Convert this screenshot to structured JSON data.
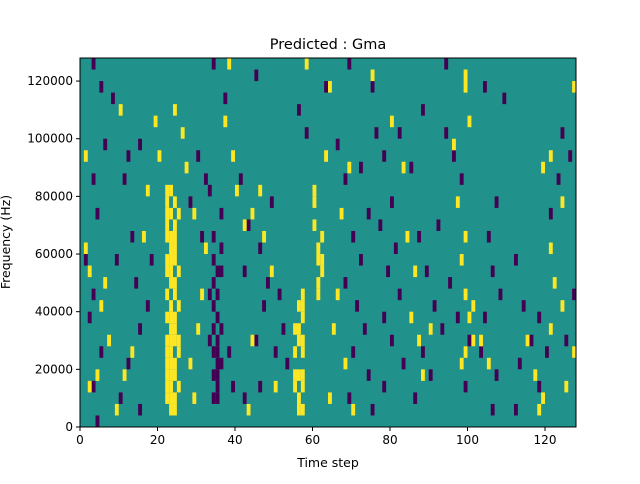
{
  "chart_data": {
    "type": "heatmap",
    "title": "Predicted : Gma",
    "xlabel": "Time step",
    "ylabel": "Frequency (Hz)",
    "xlim": [
      0,
      128
    ],
    "ylim": [
      0,
      128000
    ],
    "xticks": [
      0,
      20,
      40,
      60,
      80,
      100,
      120
    ],
    "yticks": [
      0,
      20000,
      40000,
      60000,
      80000,
      100000,
      120000
    ],
    "ytick_labels": [
      "0",
      "20000",
      "40000",
      "60000",
      "80000",
      "100000",
      "120000"
    ],
    "grid": false,
    "legend": "none",
    "value_levels": [
      -1,
      0,
      1
    ],
    "colors": {
      "-1": "#440154",
      "0": "#21918c",
      "1": "#fde725"
    },
    "background_value": 0,
    "cells": [
      [
        22,
        80000,
        1
      ],
      [
        22,
        76000,
        1
      ],
      [
        22,
        72000,
        1
      ],
      [
        22,
        68000,
        1
      ],
      [
        22,
        64000,
        1
      ],
      [
        22,
        56000,
        1
      ],
      [
        22,
        52000,
        1
      ],
      [
        22,
        44000,
        1
      ],
      [
        22,
        36000,
        1
      ],
      [
        22,
        28000,
        1
      ],
      [
        22,
        24000,
        1
      ],
      [
        22,
        20000,
        1
      ],
      [
        22,
        16000,
        1
      ],
      [
        22,
        12000,
        1
      ],
      [
        22,
        8000,
        1
      ],
      [
        23,
        80000,
        1
      ],
      [
        23,
        72000,
        1
      ],
      [
        23,
        64000,
        1
      ],
      [
        23,
        60000,
        1
      ],
      [
        23,
        56000,
        1
      ],
      [
        23,
        52000,
        1
      ],
      [
        23,
        48000,
        1
      ],
      [
        23,
        40000,
        1
      ],
      [
        23,
        36000,
        1
      ],
      [
        23,
        32000,
        1
      ],
      [
        23,
        28000,
        1
      ],
      [
        23,
        24000,
        1
      ],
      [
        23,
        20000,
        1
      ],
      [
        23,
        16000,
        1
      ],
      [
        23,
        12000,
        1
      ],
      [
        23,
        8000,
        1
      ],
      [
        23,
        4000,
        1
      ],
      [
        24,
        76000,
        1
      ],
      [
        24,
        68000,
        1
      ],
      [
        24,
        64000,
        1
      ],
      [
        24,
        60000,
        1
      ],
      [
        24,
        56000,
        1
      ],
      [
        24,
        48000,
        1
      ],
      [
        24,
        44000,
        1
      ],
      [
        24,
        36000,
        1
      ],
      [
        24,
        32000,
        1
      ],
      [
        24,
        28000,
        1
      ],
      [
        24,
        20000,
        1
      ],
      [
        24,
        16000,
        1
      ],
      [
        24,
        8000,
        1
      ],
      [
        24,
        4000,
        1
      ],
      [
        25,
        72000,
        1
      ],
      [
        25,
        52000,
        1
      ],
      [
        25,
        40000,
        1
      ],
      [
        25,
        28000,
        1
      ],
      [
        25,
        24000,
        1
      ],
      [
        25,
        12000,
        1
      ],
      [
        57,
        44000,
        1
      ],
      [
        57,
        40000,
        1
      ],
      [
        57,
        36000,
        1
      ],
      [
        57,
        28000,
        1
      ],
      [
        57,
        24000,
        1
      ],
      [
        57,
        16000,
        1
      ],
      [
        57,
        12000,
        1
      ],
      [
        57,
        4000,
        1
      ],
      [
        56,
        40000,
        1
      ],
      [
        56,
        32000,
        1
      ],
      [
        56,
        28000,
        1
      ],
      [
        56,
        16000,
        1
      ],
      [
        56,
        8000,
        1
      ],
      [
        56,
        4000,
        1
      ],
      [
        55,
        32000,
        1
      ],
      [
        55,
        24000,
        1
      ],
      [
        55,
        16000,
        1
      ],
      [
        55,
        12000,
        1
      ],
      [
        61,
        60000,
        1
      ],
      [
        61,
        56000,
        1
      ],
      [
        61,
        48000,
        1
      ],
      [
        61,
        44000,
        1
      ],
      [
        62,
        64000,
        1
      ],
      [
        62,
        56000,
        1
      ],
      [
        62,
        52000,
        1
      ],
      [
        60,
        80000,
        1
      ],
      [
        60,
        76000,
        1
      ],
      [
        60,
        68000,
        1
      ],
      [
        35,
        52000,
        -1
      ],
      [
        35,
        44000,
        -1
      ],
      [
        35,
        36000,
        -1
      ],
      [
        35,
        28000,
        -1
      ],
      [
        35,
        24000,
        -1
      ],
      [
        35,
        20000,
        -1
      ],
      [
        35,
        16000,
        -1
      ],
      [
        35,
        12000,
        -1
      ],
      [
        35,
        8000,
        -1
      ],
      [
        34,
        64000,
        -1
      ],
      [
        34,
        56000,
        -1
      ],
      [
        34,
        48000,
        -1
      ],
      [
        34,
        40000,
        -1
      ],
      [
        34,
        32000,
        -1
      ],
      [
        34,
        24000,
        -1
      ],
      [
        34,
        16000,
        -1
      ],
      [
        34,
        8000,
        -1
      ],
      [
        36,
        72000,
        -1
      ],
      [
        36,
        60000,
        -1
      ],
      [
        36,
        52000,
        -1
      ],
      [
        36,
        32000,
        -1
      ],
      [
        36,
        20000,
        -1
      ],
      [
        33,
        80000,
        -1
      ],
      [
        33,
        44000,
        -1
      ],
      [
        33,
        28000,
        -1
      ],
      [
        3,
        124000,
        -1
      ],
      [
        5,
        116000,
        -1
      ],
      [
        8,
        112000,
        -1
      ],
      [
        6,
        96000,
        -1
      ],
      [
        3,
        84000,
        -1
      ],
      [
        4,
        72000,
        -1
      ],
      [
        1,
        56000,
        -1
      ],
      [
        3,
        44000,
        -1
      ],
      [
        2,
        36000,
        -1
      ],
      [
        5,
        24000,
        -1
      ],
      [
        3,
        12000,
        -1
      ],
      [
        4,
        0,
        -1
      ],
      [
        12,
        92000,
        -1
      ],
      [
        15,
        96000,
        -1
      ],
      [
        11,
        84000,
        -1
      ],
      [
        13,
        64000,
        -1
      ],
      [
        18,
        56000,
        -1
      ],
      [
        9,
        56000,
        -1
      ],
      [
        14,
        48000,
        -1
      ],
      [
        17,
        40000,
        -1
      ],
      [
        15,
        32000,
        -1
      ],
      [
        12,
        20000,
        -1
      ],
      [
        10,
        8000,
        -1
      ],
      [
        15,
        4000,
        -1
      ],
      [
        30,
        92000,
        -1
      ],
      [
        32,
        84000,
        -1
      ],
      [
        28,
        76000,
        -1
      ],
      [
        31,
        64000,
        -1
      ],
      [
        42,
        52000,
        -1
      ],
      [
        46,
        60000,
        -1
      ],
      [
        48,
        48000,
        -1
      ],
      [
        51,
        44000,
        -1
      ],
      [
        47,
        40000,
        -1
      ],
      [
        52,
        32000,
        -1
      ],
      [
        50,
        24000,
        -1
      ],
      [
        46,
        12000,
        -1
      ],
      [
        42,
        8000,
        -1
      ],
      [
        41,
        84000,
        -1
      ],
      [
        43,
        68000,
        -1
      ],
      [
        49,
        76000,
        -1
      ],
      [
        45,
        28000,
        -1
      ],
      [
        53,
        20000,
        -1
      ],
      [
        38,
        24000,
        -1
      ],
      [
        39,
        12000,
        -1
      ],
      [
        66,
        96000,
        -1
      ],
      [
        68,
        84000,
        -1
      ],
      [
        72,
        88000,
        -1
      ],
      [
        74,
        72000,
        -1
      ],
      [
        70,
        64000,
        -1
      ],
      [
        72,
        56000,
        -1
      ],
      [
        68,
        48000,
        -1
      ],
      [
        71,
        40000,
        -1
      ],
      [
        73,
        32000,
        -1
      ],
      [
        70,
        24000,
        -1
      ],
      [
        74,
        16000,
        -1
      ],
      [
        69,
        8000,
        -1
      ],
      [
        75,
        4000,
        -1
      ],
      [
        76,
        100000,
        -1
      ],
      [
        78,
        92000,
        -1
      ],
      [
        80,
        76000,
        -1
      ],
      [
        77,
        68000,
        -1
      ],
      [
        81,
        60000,
        -1
      ],
      [
        79,
        52000,
        -1
      ],
      [
        82,
        44000,
        -1
      ],
      [
        78,
        36000,
        -1
      ],
      [
        80,
        28000,
        -1
      ],
      [
        83,
        20000,
        -1
      ],
      [
        78,
        12000,
        -1
      ],
      [
        85,
        88000,
        -1
      ],
      [
        87,
        64000,
        -1
      ],
      [
        89,
        52000,
        -1
      ],
      [
        91,
        40000,
        -1
      ],
      [
        93,
        32000,
        -1
      ],
      [
        88,
        24000,
        -1
      ],
      [
        90,
        16000,
        -1
      ],
      [
        86,
        8000,
        -1
      ],
      [
        94,
        100000,
        -1
      ],
      [
        96,
        92000,
        -1
      ],
      [
        98,
        84000,
        -1
      ],
      [
        92,
        68000,
        -1
      ],
      [
        95,
        48000,
        -1
      ],
      [
        97,
        36000,
        -1
      ],
      [
        100,
        28000,
        -1
      ],
      [
        99,
        12000,
        -1
      ],
      [
        105,
        64000,
        -1
      ],
      [
        107,
        76000,
        -1
      ],
      [
        106,
        52000,
        -1
      ],
      [
        108,
        44000,
        -1
      ],
      [
        104,
        36000,
        -1
      ],
      [
        103,
        24000,
        -1
      ],
      [
        107,
        16000,
        -1
      ],
      [
        106,
        4000,
        -1
      ],
      [
        112,
        56000,
        -1
      ],
      [
        114,
        40000,
        -1
      ],
      [
        116,
        28000,
        -1
      ],
      [
        113,
        20000,
        -1
      ],
      [
        112,
        4000,
        -1
      ],
      [
        118,
        36000,
        -1
      ],
      [
        118,
        12000,
        -1
      ],
      [
        121,
        72000,
        -1
      ],
      [
        123,
        84000,
        -1
      ],
      [
        124,
        100000,
        -1
      ],
      [
        126,
        92000,
        -1
      ],
      [
        127,
        44000,
        -1
      ],
      [
        120,
        24000,
        -1
      ],
      [
        125,
        28000,
        -1
      ],
      [
        69,
        124000,
        -1
      ],
      [
        75,
        116000,
        -1
      ],
      [
        82,
        100000,
        -1
      ],
      [
        88,
        108000,
        -1
      ],
      [
        94,
        124000,
        -1
      ],
      [
        104,
        116000,
        -1
      ],
      [
        109,
        112000,
        -1
      ],
      [
        34,
        124000,
        -1
      ],
      [
        37,
        112000,
        -1
      ],
      [
        45,
        120000,
        -1
      ],
      [
        56,
        108000,
        -1
      ],
      [
        58,
        100000,
        -1
      ],
      [
        63,
        116000,
        -1
      ],
      [
        29,
        8000,
        1
      ],
      [
        28,
        20000,
        1
      ],
      [
        30,
        32000,
        1
      ],
      [
        31,
        44000,
        1
      ],
      [
        32,
        60000,
        1
      ],
      [
        29,
        72000,
        1
      ],
      [
        27,
        88000,
        1
      ],
      [
        26,
        100000,
        1
      ],
      [
        24,
        108000,
        1
      ],
      [
        20,
        92000,
        1
      ],
      [
        19,
        104000,
        1
      ],
      [
        17,
        80000,
        1
      ],
      [
        16,
        64000,
        1
      ],
      [
        13,
        24000,
        1
      ],
      [
        11,
        16000,
        1
      ],
      [
        9,
        4000,
        1
      ],
      [
        7,
        28000,
        1
      ],
      [
        5,
        40000,
        1
      ],
      [
        2,
        52000,
        1
      ],
      [
        1,
        60000,
        1
      ],
      [
        6,
        48000,
        1
      ],
      [
        4,
        16000,
        1
      ],
      [
        2,
        12000,
        1
      ],
      [
        1,
        92000,
        1
      ],
      [
        10,
        108000,
        1
      ],
      [
        38,
        124000,
        1
      ],
      [
        37,
        104000,
        1
      ],
      [
        39,
        92000,
        1
      ],
      [
        40,
        80000,
        1
      ],
      [
        42,
        68000,
        1
      ],
      [
        44,
        72000,
        1
      ],
      [
        46,
        80000,
        1
      ],
      [
        47,
        64000,
        1
      ],
      [
        49,
        52000,
        1
      ],
      [
        44,
        28000,
        1
      ],
      [
        50,
        12000,
        1
      ],
      [
        43,
        4000,
        1
      ],
      [
        58,
        124000,
        1
      ],
      [
        64,
        116000,
        1
      ],
      [
        63,
        92000,
        1
      ],
      [
        69,
        88000,
        1
      ],
      [
        67,
        72000,
        1
      ],
      [
        66,
        44000,
        1
      ],
      [
        65,
        32000,
        1
      ],
      [
        68,
        20000,
        1
      ],
      [
        64,
        8000,
        1
      ],
      [
        70,
        4000,
        1
      ],
      [
        75,
        120000,
        1
      ],
      [
        80,
        104000,
        1
      ],
      [
        83,
        88000,
        1
      ],
      [
        84,
        64000,
        1
      ],
      [
        86,
        52000,
        1
      ],
      [
        85,
        36000,
        1
      ],
      [
        87,
        28000,
        1
      ],
      [
        88,
        16000,
        1
      ],
      [
        90,
        32000,
        1
      ],
      [
        99,
        120000,
        1
      ],
      [
        99,
        116000,
        1
      ],
      [
        96,
        96000,
        1
      ],
      [
        100,
        104000,
        1
      ],
      [
        97,
        76000,
        1
      ],
      [
        99,
        64000,
        1
      ],
      [
        98,
        56000,
        1
      ],
      [
        99,
        44000,
        1
      ],
      [
        100,
        36000,
        1
      ],
      [
        99,
        24000,
        1
      ],
      [
        98,
        20000,
        1
      ],
      [
        101,
        28000,
        1
      ],
      [
        115,
        28000,
        1
      ],
      [
        117,
        16000,
        1
      ],
      [
        119,
        8000,
        1
      ],
      [
        118,
        4000,
        1
      ],
      [
        121,
        32000,
        1
      ],
      [
        124,
        40000,
        1
      ],
      [
        122,
        48000,
        1
      ],
      [
        121,
        60000,
        1
      ],
      [
        124,
        76000,
        1
      ],
      [
        119,
        88000,
        1
      ],
      [
        121,
        92000,
        1
      ],
      [
        127,
        24000,
        1
      ],
      [
        127,
        116000,
        1
      ],
      [
        125,
        12000,
        1
      ],
      [
        101,
        40000,
        1
      ],
      [
        103,
        28000,
        1
      ],
      [
        105,
        20000,
        1
      ]
    ]
  }
}
